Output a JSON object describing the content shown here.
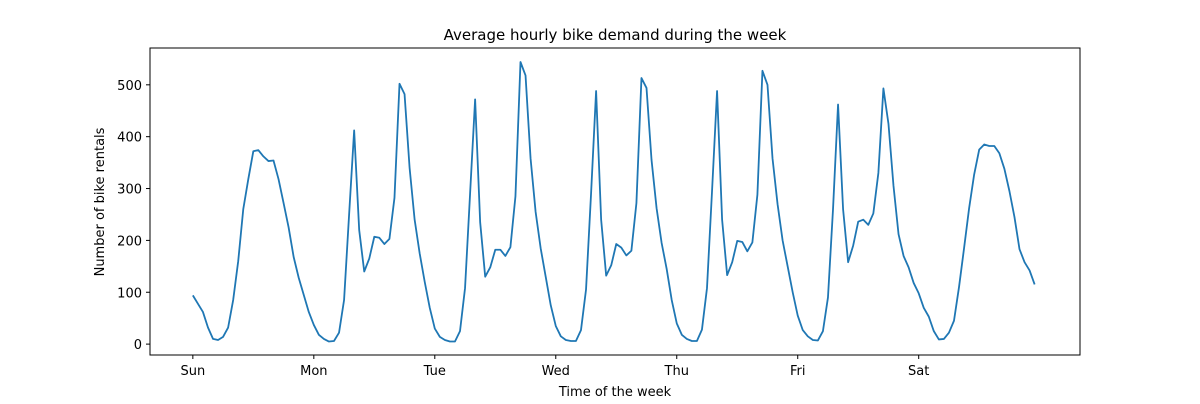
{
  "chart_data": {
    "type": "line",
    "title": "Average hourly bike demand during the week",
    "xlabel": "Time of the week",
    "ylabel": "Number of bike rentals",
    "xlim": [
      -8.5,
      176
    ],
    "ylim": [
      -21,
      571
    ],
    "grid": false,
    "x_ticks": [
      0,
      24,
      48,
      72,
      96,
      120,
      144
    ],
    "x_tick_labels": [
      "Sun",
      "Mon",
      "Tue",
      "Wed",
      "Thu",
      "Fri",
      "Sat"
    ],
    "y_ticks": [
      0,
      100,
      200,
      300,
      400,
      500
    ],
    "y_tick_labels": [
      "0",
      "100",
      "200",
      "300",
      "400",
      "500"
    ],
    "line_color": "#1f77b4",
    "series": [
      {
        "values": [
          94,
          78,
          62,
          32,
          10,
          8,
          14,
          32,
          85,
          160,
          260,
          318,
          372,
          374,
          362,
          353,
          354,
          318,
          272,
          225,
          168,
          128,
          95,
          62,
          37,
          18,
          10,
          5,
          6,
          22,
          85,
          250,
          412,
          220,
          140,
          165,
          207,
          205,
          193,
          203,
          282,
          502,
          482,
          340,
          240,
          175,
          120,
          70,
          30,
          14,
          8,
          5,
          5,
          25,
          108,
          290,
          472,
          235,
          130,
          148,
          182,
          182,
          170,
          187,
          285,
          544,
          518,
          358,
          255,
          185,
          130,
          75,
          35,
          15,
          8,
          6,
          6,
          27,
          105,
          290,
          488,
          240,
          132,
          152,
          193,
          186,
          171,
          180,
          272,
          513,
          494,
          355,
          262,
          195,
          145,
          85,
          40,
          18,
          10,
          6,
          6,
          28,
          108,
          295,
          488,
          240,
          133,
          158,
          199,
          197,
          179,
          196,
          288,
          527,
          500,
          358,
          270,
          200,
          150,
          100,
          55,
          27,
          15,
          8,
          7,
          25,
          90,
          260,
          462,
          260,
          158,
          190,
          236,
          240,
          230,
          252,
          330,
          493,
          425,
          305,
          212,
          170,
          148,
          118,
          98,
          70,
          53,
          25,
          9,
          10,
          22,
          45,
          110,
          185,
          262,
          327,
          375,
          385,
          382,
          382,
          368,
          338,
          295,
          245,
          183,
          158,
          142,
          115
        ]
      }
    ]
  }
}
